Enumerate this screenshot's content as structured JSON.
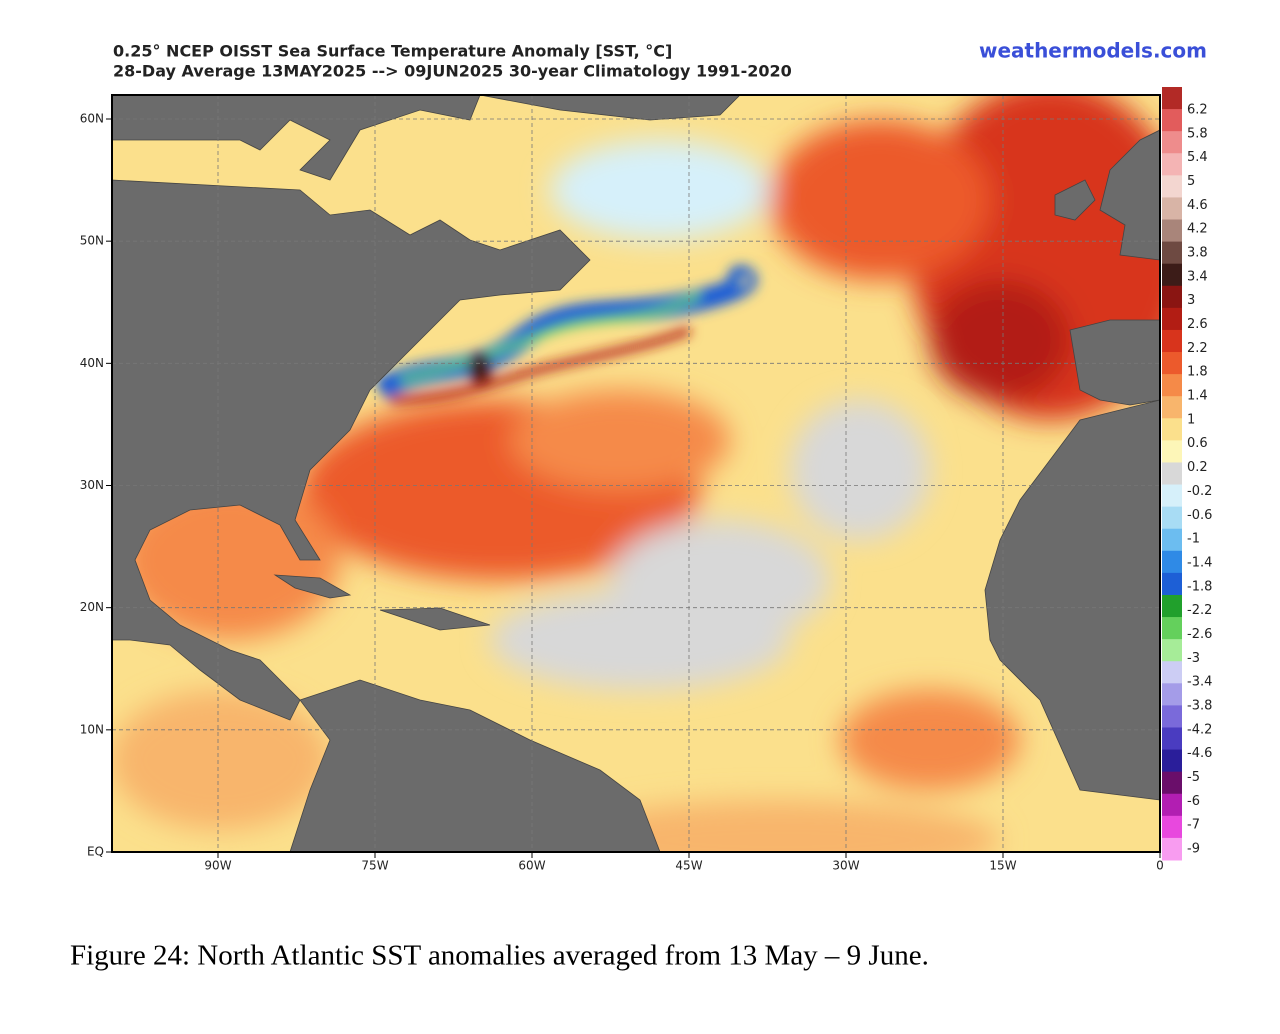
{
  "header": {
    "title_line1": "0.25° NCEP OISST Sea Surface Temperature Anomaly [SST, °C]",
    "title_line2": "28-Day Average 13MAY2025 --> 09JUN2025   30-year Climatology 1991-2020",
    "site": "weathermodels.com"
  },
  "map": {
    "lat_labels": [
      "60N",
      "50N",
      "40N",
      "30N",
      "20N",
      "10N",
      "EQ"
    ],
    "lon_labels": [
      "90W",
      "75W",
      "60W",
      "45W",
      "30W",
      "15W",
      "0"
    ]
  },
  "colorbar": {
    "labels": [
      6.2,
      5.8,
      5.4,
      5,
      4.6,
      4.2,
      3.8,
      3.4,
      3,
      2.6,
      2.2,
      1.8,
      1.4,
      1,
      0.6,
      0.2,
      -0.2,
      -0.6,
      -1,
      -1.4,
      -1.8,
      -2.2,
      -2.6,
      -3,
      -3.4,
      -3.8,
      -4.2,
      -4.6,
      -5,
      -6,
      -7,
      -9
    ],
    "colors": [
      "#b22a26",
      "#e25c5c",
      "#ee8c8c",
      "#f4b4b4",
      "#f3d6d0",
      "#d8b4a6",
      "#a9857a",
      "#6e4a42",
      "#3c1c18",
      "#8a1512",
      "#b21d14",
      "#d8341c",
      "#ec5a2c",
      "#f58a48",
      "#f8b56c",
      "#fbe08c",
      "#fdf6b8",
      "#d8d8d8",
      "#d6f0fa",
      "#a8dcf4",
      "#6cbdf0",
      "#2f8ae6",
      "#1d5fd6",
      "#21a02c",
      "#64d05c",
      "#a6ec98",
      "#cccdf4",
      "#a49ce8",
      "#7a6ada",
      "#4a3cc0",
      "#2a1e9a",
      "#6a0e6a",
      "#b21eb2",
      "#e848de",
      "#f89cf0"
    ]
  },
  "caption": "Figure 24: North Atlantic SST anomalies averaged from 13 May – 9 June."
}
